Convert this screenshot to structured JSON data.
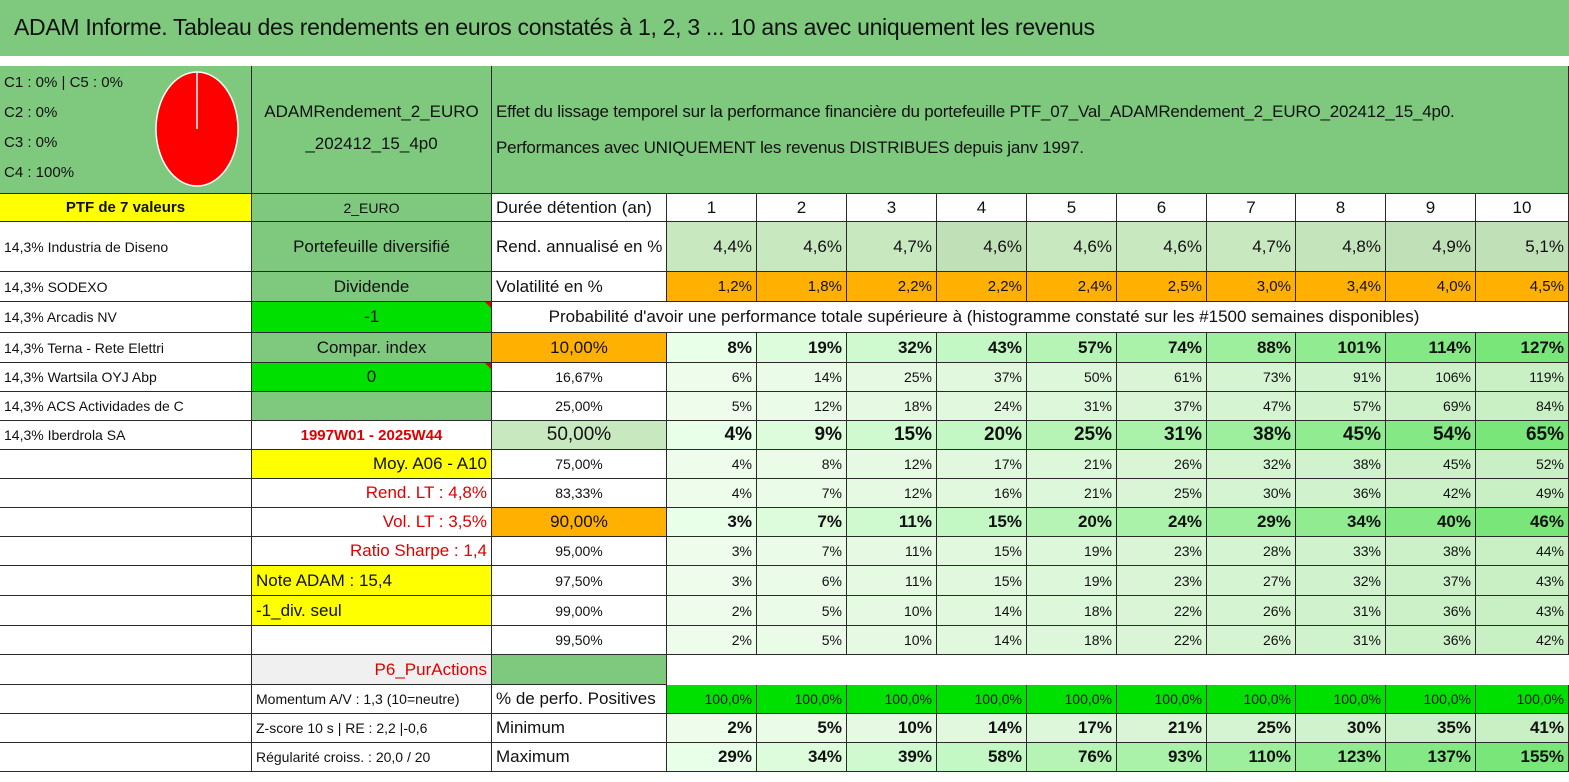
{
  "title": "ADAM Informe. Tableau des rendements en euros constatés à 1, 2, 3 ... 10 ans avec uniquement les revenus",
  "categories": [
    "C1 : 0% | C5 : 0%",
    "C2 : 0%",
    "C3 : 0%",
    "C4 : 100%"
  ],
  "pie": {
    "slices": [
      {
        "label": "C4",
        "value": 100,
        "color": "#ff0000"
      }
    ],
    "divider_color": "#ffffff"
  },
  "portfolio_name": [
    "ADAMRendement_2_EURO",
    "_202412_15_4p0"
  ],
  "effect_text": [
    "Effet du lissage temporel sur la performance financière du portefeuille PTF_07_Val_ADAMRendement_2_EURO_202412_15_4p0.",
    "Performances avec UNIQUEMENT les revenus DISTRIBUES depuis janv 1997."
  ],
  "holdings_header": "PTF de 7 valeurs",
  "holdings": [
    "14,3% Industria de Diseno",
    "14,3% SODEXO",
    "14,3% Arcadis NV",
    "14,3% Terna - Rete Elettri",
    "14,3% Wartsila OYJ Abp",
    "14,3% ACS Actividades de C",
    "14,3% Iberdrola SA"
  ],
  "info": {
    "code": "2_EURO",
    "portfolio_type": "Portefeuille diversifié",
    "dividend_label": "Dividende",
    "dividend_value": "-1",
    "compar_label": "Compar. index",
    "compar_value": "0",
    "period": "1997W01 - 2025W44",
    "moy": "Moy. A06 - A10",
    "rend_lt": "Rend. LT : 4,8%",
    "vol_lt": "Vol. LT : 3,5%",
    "sharpe": "Ratio Sharpe : 1,4",
    "note": "Note ADAM : 15,4",
    "div_seul": "-1_div. seul",
    "p6": "P6_PurActions",
    "momentum": "Momentum A/V : 1,3 (10=neutre)",
    "zscore": "Z-score 10 s | RE : 2,2 |-0,6",
    "regularite": "Régularité croiss. : 20,0 / 20"
  },
  "table": {
    "duration_label": "Durée détention (an)",
    "years": [
      "1",
      "2",
      "3",
      "4",
      "5",
      "6",
      "7",
      "8",
      "9",
      "10"
    ],
    "rend_label": "Rend. annualisé en %",
    "rend": [
      "4,4%",
      "4,6%",
      "4,7%",
      "4,6%",
      "4,6%",
      "4,6%",
      "4,7%",
      "4,8%",
      "4,9%",
      "5,1%"
    ],
    "vol_label": "Volatilité en %",
    "vol": [
      "1,2%",
      "1,8%",
      "2,2%",
      "2,2%",
      "2,4%",
      "2,5%",
      "3,0%",
      "3,4%",
      "4,0%",
      "4,5%"
    ],
    "prob_title": "Probabilité d'avoir une performance totale supérieure à (histogramme constaté sur les #1500 semaines disponibles)",
    "prob_rows": [
      {
        "p": "10,00%",
        "v": [
          "8%",
          "19%",
          "32%",
          "43%",
          "57%",
          "74%",
          "88%",
          "101%",
          "114%",
          "127%"
        ]
      },
      {
        "p": "16,67%",
        "v": [
          "6%",
          "14%",
          "25%",
          "37%",
          "50%",
          "61%",
          "73%",
          "91%",
          "106%",
          "119%"
        ]
      },
      {
        "p": "25,00%",
        "v": [
          "5%",
          "12%",
          "18%",
          "24%",
          "31%",
          "37%",
          "47%",
          "57%",
          "69%",
          "84%"
        ]
      },
      {
        "p": "50,00%",
        "v": [
          "4%",
          "9%",
          "15%",
          "20%",
          "25%",
          "31%",
          "38%",
          "45%",
          "54%",
          "65%"
        ]
      },
      {
        "p": "75,00%",
        "v": [
          "4%",
          "8%",
          "12%",
          "17%",
          "21%",
          "26%",
          "32%",
          "38%",
          "45%",
          "52%"
        ]
      },
      {
        "p": "83,33%",
        "v": [
          "4%",
          "7%",
          "12%",
          "16%",
          "21%",
          "25%",
          "30%",
          "36%",
          "42%",
          "49%"
        ]
      },
      {
        "p": "90,00%",
        "v": [
          "3%",
          "7%",
          "11%",
          "15%",
          "20%",
          "24%",
          "29%",
          "34%",
          "40%",
          "46%"
        ]
      },
      {
        "p": "95,00%",
        "v": [
          "3%",
          "7%",
          "11%",
          "15%",
          "19%",
          "23%",
          "28%",
          "33%",
          "38%",
          "44%"
        ]
      },
      {
        "p": "97,50%",
        "v": [
          "3%",
          "6%",
          "11%",
          "15%",
          "19%",
          "23%",
          "27%",
          "32%",
          "37%",
          "43%"
        ]
      },
      {
        "p": "99,00%",
        "v": [
          "2%",
          "5%",
          "10%",
          "14%",
          "18%",
          "22%",
          "26%",
          "31%",
          "36%",
          "43%"
        ]
      },
      {
        "p": "99,50%",
        "v": [
          "2%",
          "5%",
          "10%",
          "14%",
          "18%",
          "22%",
          "26%",
          "31%",
          "36%",
          "42%"
        ]
      }
    ],
    "pos_label": "% de perfo. Positives",
    "pos": [
      "100,0%",
      "100,0%",
      "100,0%",
      "100,0%",
      "100,0%",
      "100,0%",
      "100,0%",
      "100,0%",
      "100,0%",
      "100,0%"
    ],
    "min_label": "Minimum",
    "min": [
      "2%",
      "5%",
      "10%",
      "14%",
      "17%",
      "21%",
      "25%",
      "30%",
      "35%",
      "41%"
    ],
    "max_label": "Maximum",
    "max": [
      "29%",
      "34%",
      "39%",
      "58%",
      "76%",
      "93%",
      "110%",
      "123%",
      "137%",
      "155%"
    ]
  }
}
